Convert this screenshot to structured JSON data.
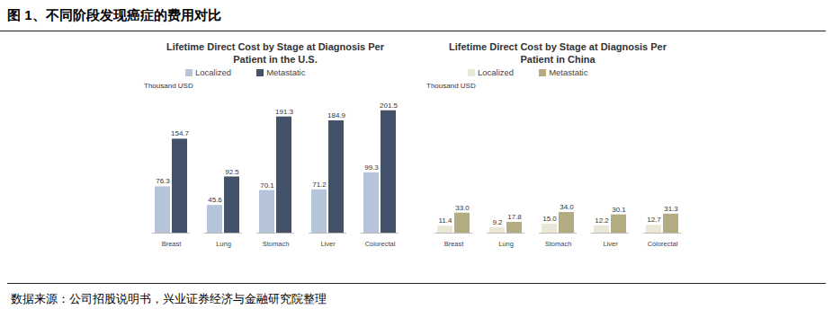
{
  "header": {
    "title": "图 1、不同阶段发现癌症的费用对比"
  },
  "source": "数据来源：公司招股说明书，兴业证券经济与金融研究院整理",
  "chart_data": [
    {
      "type": "bar",
      "title": "Lifetime Direct Cost by Stage at Diagnosis Per Patient in the U.S.",
      "y_label": "Thousand USD",
      "categories": [
        "Breast",
        "Lung",
        "Stomach",
        "Liver",
        "Colorectal"
      ],
      "series": [
        {
          "name": "Localized",
          "color": "#b5c4d9",
          "values": [
            76.3,
            45.6,
            70.1,
            71.2,
            99.3
          ]
        },
        {
          "name": "Metastatic",
          "color": "#44516a",
          "values": [
            154.7,
            92.5,
            191.3,
            184.9,
            201.5
          ]
        }
      ],
      "ylim": [
        0,
        210
      ],
      "legend": "top",
      "data_labels": true,
      "tick_labels": "x"
    },
    {
      "type": "bar",
      "title": "Lifetime Direct Cost by Stage at Diagnosis Per Patient in China",
      "y_label": "Thousand USD",
      "categories": [
        "Breast",
        "Lung",
        "Stomach",
        "Liver",
        "Colorectal"
      ],
      "series": [
        {
          "name": "Localized",
          "color": "#ebe7d6",
          "values": [
            11.4,
            9.2,
            15.0,
            12.2,
            12.7
          ],
          "value_labels": [
            "11.4",
            "9.2",
            "15.0",
            "12.2",
            "12.7"
          ]
        },
        {
          "name": "Metastatic",
          "color": "#b2ac80",
          "values": [
            33.0,
            17.8,
            34.0,
            30.1,
            31.3
          ],
          "value_labels": [
            "33.0",
            "17.8",
            "34.0",
            "30.1",
            "31.3"
          ]
        }
      ],
      "ylim": [
        0,
        210
      ],
      "legend": "top",
      "data_labels": true,
      "tick_labels": "x"
    }
  ]
}
